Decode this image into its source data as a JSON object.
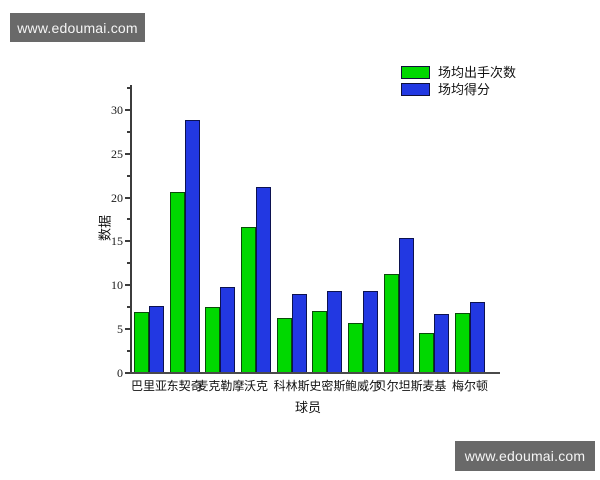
{
  "watermark": {
    "text": "www.edoumai.com"
  },
  "chart_data": {
    "type": "bar",
    "title": "",
    "xlabel": "球员",
    "ylabel": "数据",
    "categories": [
      "巴里亚",
      "东契奇",
      "麦克勒摩",
      "沃克",
      "科林斯",
      "史密斯",
      "鲍威尔",
      "贝尔坦斯",
      "麦基",
      "梅尔顿"
    ],
    "series": [
      {
        "name": "场均出手次数",
        "color": "#00d800",
        "edge_color": "#0a4a0a",
        "values": [
          7.0,
          20.6,
          7.5,
          16.6,
          6.3,
          7.1,
          5.7,
          11.3,
          4.6,
          6.8
        ]
      },
      {
        "name": "场均得分",
        "color": "#2238e2",
        "edge_color": "#0c1250",
        "values": [
          7.6,
          28.8,
          9.8,
          21.2,
          9.0,
          9.3,
          9.4,
          15.4,
          6.7,
          8.1
        ]
      }
    ],
    "ylim": [
      0,
      32.8
    ],
    "yticks": [
      0,
      5,
      10,
      15,
      20,
      25,
      30
    ],
    "ytick_minor_step": 2.5,
    "grid": false,
    "legend_position": "top-right-outside"
  }
}
